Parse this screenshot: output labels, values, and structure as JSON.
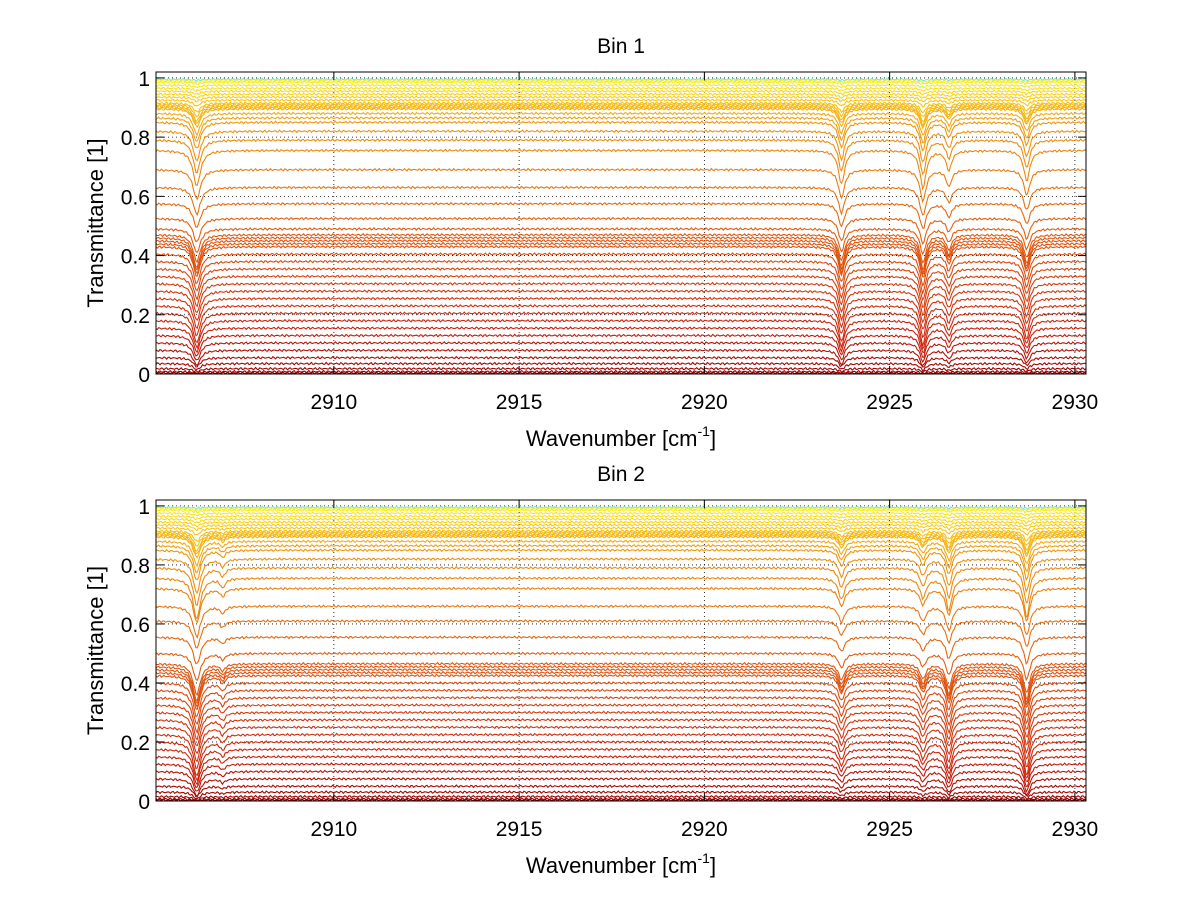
{
  "chart_data": [
    {
      "type": "line",
      "title": "Bin 1",
      "xlabel": "Wavenumber [cm-1]",
      "xlabel_main": "Wavenumber [cm",
      "xlabel_sup": "-1",
      "xlabel_end": "]",
      "ylabel": "Transmittance [1]",
      "xlim": [
        2905.2,
        2930.3
      ],
      "ylim": [
        0,
        1.02
      ],
      "xticks": [
        2910,
        2915,
        2920,
        2925,
        2930
      ],
      "xtick_labels": [
        "2910",
        "2915",
        "2920",
        "2925",
        "2930"
      ],
      "yticks": [
        0,
        0.2,
        0.4,
        0.6,
        0.8,
        1
      ],
      "ytick_labels": [
        "0",
        "0.2",
        "0.4",
        "0.6",
        "0.8",
        "1"
      ],
      "grid": true,
      "colormap": "autumn-to-yellow (dark red at low transmittance, yellow/cyan near 1)",
      "absorption_lines": [
        {
          "x": 2906.3,
          "w": 0.12,
          "rel_depth": 1.0
        },
        {
          "x": 2923.7,
          "w": 0.1,
          "rel_depth": 0.95
        },
        {
          "x": 2925.9,
          "w": 0.1,
          "rel_depth": 1.05
        },
        {
          "x": 2926.6,
          "w": 0.09,
          "rel_depth": 0.55
        },
        {
          "x": 2928.7,
          "w": 0.1,
          "rel_depth": 0.85
        }
      ],
      "series": [
        {
          "baseline": 0.995,
          "depth": 0.003
        },
        {
          "baseline": 0.99,
          "depth": 0.004
        },
        {
          "baseline": 0.985,
          "depth": 0.005
        },
        {
          "baseline": 0.975,
          "depth": 0.006
        },
        {
          "baseline": 0.965,
          "depth": 0.008
        },
        {
          "baseline": 0.955,
          "depth": 0.01
        },
        {
          "baseline": 0.945,
          "depth": 0.012
        },
        {
          "baseline": 0.935,
          "depth": 0.014
        },
        {
          "baseline": 0.925,
          "depth": 0.02
        },
        {
          "baseline": 0.915,
          "depth": 0.03
        },
        {
          "baseline": 0.91,
          "depth": 0.04
        },
        {
          "baseline": 0.905,
          "depth": 0.05
        },
        {
          "baseline": 0.9,
          "depth": 0.055
        },
        {
          "baseline": 0.895,
          "depth": 0.06
        },
        {
          "baseline": 0.88,
          "depth": 0.07
        },
        {
          "baseline": 0.865,
          "depth": 0.08
        },
        {
          "baseline": 0.85,
          "depth": 0.09
        },
        {
          "baseline": 0.82,
          "depth": 0.1
        },
        {
          "baseline": 0.79,
          "depth": 0.11
        },
        {
          "baseline": 0.755,
          "depth": 0.12
        },
        {
          "baseline": 0.69,
          "depth": 0.1
        },
        {
          "baseline": 0.63,
          "depth": 0.09
        },
        {
          "baseline": 0.575,
          "depth": 0.08
        },
        {
          "baseline": 0.525,
          "depth": 0.08
        },
        {
          "baseline": 0.49,
          "depth": 0.08
        },
        {
          "baseline": 0.47,
          "depth": 0.09
        },
        {
          "baseline": 0.46,
          "depth": 0.1
        },
        {
          "baseline": 0.45,
          "depth": 0.1
        },
        {
          "baseline": 0.44,
          "depth": 0.1
        },
        {
          "baseline": 0.43,
          "depth": 0.1
        },
        {
          "baseline": 0.405,
          "depth": 0.1
        },
        {
          "baseline": 0.38,
          "depth": 0.1
        },
        {
          "baseline": 0.355,
          "depth": 0.1
        },
        {
          "baseline": 0.33,
          "depth": 0.1
        },
        {
          "baseline": 0.305,
          "depth": 0.1
        },
        {
          "baseline": 0.28,
          "depth": 0.1
        },
        {
          "baseline": 0.255,
          "depth": 0.1
        },
        {
          "baseline": 0.23,
          "depth": 0.1
        },
        {
          "baseline": 0.205,
          "depth": 0.1
        },
        {
          "baseline": 0.18,
          "depth": 0.09
        },
        {
          "baseline": 0.155,
          "depth": 0.08
        },
        {
          "baseline": 0.13,
          "depth": 0.07
        },
        {
          "baseline": 0.105,
          "depth": 0.06
        },
        {
          "baseline": 0.08,
          "depth": 0.05
        },
        {
          "baseline": 0.055,
          "depth": 0.03
        },
        {
          "baseline": 0.035,
          "depth": 0.02
        },
        {
          "baseline": 0.018,
          "depth": 0.01
        },
        {
          "baseline": 0.008,
          "depth": 0.005
        },
        {
          "baseline": 0.003,
          "depth": 0.002
        }
      ]
    },
    {
      "type": "line",
      "title": "Bin 2",
      "xlabel": "Wavenumber [cm-1]",
      "xlabel_main": "Wavenumber [cm",
      "xlabel_sup": "-1",
      "xlabel_end": "]",
      "ylabel": "Transmittance [1]",
      "xlim": [
        2905.2,
        2930.3
      ],
      "ylim": [
        0,
        1.02
      ],
      "xticks": [
        2910,
        2915,
        2920,
        2925,
        2930
      ],
      "xtick_labels": [
        "2910",
        "2915",
        "2920",
        "2925",
        "2930"
      ],
      "yticks": [
        0,
        0.2,
        0.4,
        0.6,
        0.8,
        1
      ],
      "ytick_labels": [
        "0",
        "0.2",
        "0.4",
        "0.6",
        "0.8",
        "1"
      ],
      "grid": true,
      "colormap": "autumn-to-yellow (dark red at low transmittance, yellow/cyan near 1)",
      "absorption_lines": [
        {
          "x": 2906.3,
          "w": 0.12,
          "rel_depth": 1.15
        },
        {
          "x": 2907.0,
          "w": 0.08,
          "rel_depth": 0.25
        },
        {
          "x": 2923.7,
          "w": 0.1,
          "rel_depth": 0.6
        },
        {
          "x": 2925.9,
          "w": 0.1,
          "rel_depth": 0.55
        },
        {
          "x": 2926.6,
          "w": 0.1,
          "rel_depth": 0.9
        },
        {
          "x": 2928.7,
          "w": 0.1,
          "rel_depth": 1.1
        }
      ],
      "series": [
        {
          "baseline": 0.995,
          "depth": 0.003
        },
        {
          "baseline": 0.99,
          "depth": 0.004
        },
        {
          "baseline": 0.985,
          "depth": 0.005
        },
        {
          "baseline": 0.975,
          "depth": 0.006
        },
        {
          "baseline": 0.965,
          "depth": 0.008
        },
        {
          "baseline": 0.955,
          "depth": 0.01
        },
        {
          "baseline": 0.945,
          "depth": 0.012
        },
        {
          "baseline": 0.935,
          "depth": 0.014
        },
        {
          "baseline": 0.925,
          "depth": 0.02
        },
        {
          "baseline": 0.915,
          "depth": 0.03
        },
        {
          "baseline": 0.91,
          "depth": 0.04
        },
        {
          "baseline": 0.905,
          "depth": 0.05
        },
        {
          "baseline": 0.9,
          "depth": 0.055
        },
        {
          "baseline": 0.895,
          "depth": 0.06
        },
        {
          "baseline": 0.88,
          "depth": 0.07
        },
        {
          "baseline": 0.865,
          "depth": 0.08
        },
        {
          "baseline": 0.85,
          "depth": 0.09
        },
        {
          "baseline": 0.82,
          "depth": 0.1
        },
        {
          "baseline": 0.79,
          "depth": 0.11
        },
        {
          "baseline": 0.755,
          "depth": 0.12
        },
        {
          "baseline": 0.72,
          "depth": 0.1
        },
        {
          "baseline": 0.66,
          "depth": 0.09
        },
        {
          "baseline": 0.61,
          "depth": 0.08
        },
        {
          "baseline": 0.555,
          "depth": 0.08
        },
        {
          "baseline": 0.5,
          "depth": 0.08
        },
        {
          "baseline": 0.465,
          "depth": 0.09
        },
        {
          "baseline": 0.455,
          "depth": 0.1
        },
        {
          "baseline": 0.445,
          "depth": 0.1
        },
        {
          "baseline": 0.435,
          "depth": 0.1
        },
        {
          "baseline": 0.425,
          "depth": 0.1
        },
        {
          "baseline": 0.4,
          "depth": 0.1
        },
        {
          "baseline": 0.375,
          "depth": 0.1
        },
        {
          "baseline": 0.35,
          "depth": 0.1
        },
        {
          "baseline": 0.325,
          "depth": 0.1
        },
        {
          "baseline": 0.3,
          "depth": 0.1
        },
        {
          "baseline": 0.275,
          "depth": 0.1
        },
        {
          "baseline": 0.25,
          "depth": 0.1
        },
        {
          "baseline": 0.225,
          "depth": 0.1
        },
        {
          "baseline": 0.2,
          "depth": 0.1
        },
        {
          "baseline": 0.175,
          "depth": 0.09
        },
        {
          "baseline": 0.15,
          "depth": 0.08
        },
        {
          "baseline": 0.125,
          "depth": 0.07
        },
        {
          "baseline": 0.1,
          "depth": 0.06
        },
        {
          "baseline": 0.075,
          "depth": 0.05
        },
        {
          "baseline": 0.05,
          "depth": 0.03
        },
        {
          "baseline": 0.03,
          "depth": 0.02
        },
        {
          "baseline": 0.015,
          "depth": 0.01
        },
        {
          "baseline": 0.007,
          "depth": 0.005
        },
        {
          "baseline": 0.003,
          "depth": 0.002
        }
      ]
    }
  ]
}
